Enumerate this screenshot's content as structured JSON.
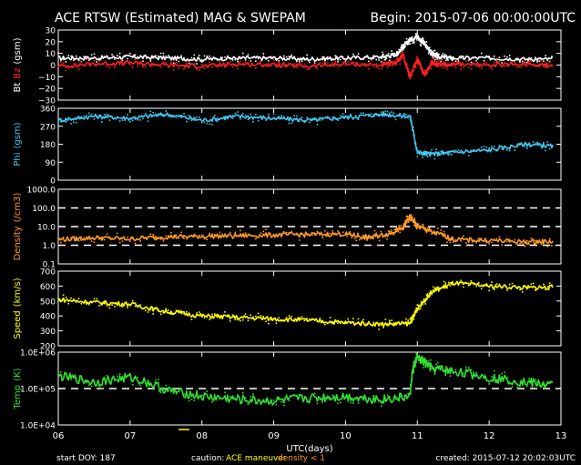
{
  "header": {
    "title": "ACE RTSW (Estimated) MAG & SWEPAM",
    "begin": "Begin: 2015-07-06 00:00:00UTC"
  },
  "footer": {
    "start_doy": "start DOY: 187",
    "caution_label": "caution:",
    "caution_maneuver": "ACE maneuver",
    "caution_density": "density < 1",
    "created": "created: 2015-07-12 20:02:03UTC",
    "xlabel": "UTC(days)"
  },
  "colors": {
    "white": "#ffffff",
    "red": "#ff2020",
    "cyan": "#40c8f0",
    "orange": "#ff9a20",
    "yellow": "#ffff00",
    "green": "#30e030",
    "maneuver": "#ffff00",
    "density_low": "#ff9a20"
  },
  "chart_data": {
    "type": "scatter",
    "x_ticks": [
      "06",
      "07",
      "08",
      "09",
      "10",
      "11",
      "12",
      "13"
    ],
    "x_range": [
      6,
      13
    ],
    "panels": [
      {
        "id": "mag",
        "ylabel_parts": [
          "Bt",
          "Bz",
          "(gsm)"
        ],
        "ylabel_colors": [
          "#ffffff",
          "#ff2020",
          "#ffffff"
        ],
        "y_range": [
          -30,
          30
        ],
        "ticks": [
          "30",
          "20",
          "10",
          "0",
          "−10",
          "−20",
          "−30"
        ],
        "tick_values": [
          30,
          20,
          10,
          0,
          -10,
          -20,
          -30
        ],
        "series": [
          {
            "name": "Bt",
            "color": "#ffffff",
            "x": [
              6.0,
              6.5,
              7.0,
              7.5,
              8.0,
              8.5,
              9.0,
              9.5,
              10.0,
              10.5,
              10.7,
              10.8,
              10.9,
              11.0,
              11.1,
              11.2,
              11.3,
              11.5,
              12.0,
              12.5,
              12.9
            ],
            "y": [
              6,
              6,
              7,
              6,
              5,
              6,
              6,
              5,
              6,
              7,
              9,
              15,
              22,
              24,
              18,
              10,
              7,
              6,
              6,
              5,
              5
            ]
          },
          {
            "name": "Bz",
            "color": "#ff2020",
            "x": [
              6.0,
              6.5,
              7.0,
              7.5,
              8.0,
              8.5,
              9.0,
              9.5,
              10.0,
              10.5,
              10.7,
              10.8,
              10.9,
              11.0,
              11.1,
              11.2,
              11.3,
              11.5,
              12.0,
              12.5,
              12.9
            ],
            "y": [
              -1,
              1,
              2,
              0,
              -1,
              1,
              0,
              -1,
              1,
              0,
              2,
              8,
              -10,
              5,
              -8,
              2,
              0,
              1,
              0,
              1,
              0
            ]
          }
        ]
      },
      {
        "id": "phi",
        "ylabel_parts": [
          "Phi",
          "(gsm)"
        ],
        "ylabel_colors": [
          "#40c8f0",
          "#40c8f0"
        ],
        "y_range": [
          0,
          360
        ],
        "ticks": [
          "360",
          "270",
          "180",
          "90",
          "0"
        ],
        "tick_values": [
          360,
          270,
          180,
          90,
          0
        ],
        "series": [
          {
            "name": "Phi",
            "color": "#40c8f0",
            "x": [
              6.0,
              6.5,
              7.0,
              7.5,
              8.0,
              8.5,
              9.0,
              9.5,
              10.0,
              10.5,
              10.9,
              11.0,
              11.2,
              11.5,
              12.0,
              12.5,
              12.9
            ],
            "y": [
              300,
              320,
              310,
              330,
              300,
              320,
              310,
              300,
              315,
              330,
              320,
              140,
              130,
              140,
              150,
              180,
              170
            ]
          }
        ]
      },
      {
        "id": "density",
        "ylabel_parts": [
          "Density",
          "(/cm3)"
        ],
        "ylabel_colors": [
          "#ff9a20",
          "#ff9a20"
        ],
        "y_log": true,
        "y_range": [
          0.1,
          1000
        ],
        "ticks": [
          "1000.0",
          "100.0",
          "10.0",
          "1.0",
          "0.1"
        ],
        "tick_values": [
          1000,
          100,
          10,
          1,
          0.1
        ],
        "dashed": [
          100,
          10,
          1
        ],
        "series": [
          {
            "name": "Density",
            "color": "#ff9a20",
            "x": [
              6.0,
              6.5,
              7.0,
              7.5,
              8.0,
              8.5,
              9.0,
              9.5,
              10.0,
              10.3,
              10.6,
              10.8,
              10.9,
              11.0,
              11.2,
              11.5,
              12.0,
              12.5,
              12.9
            ],
            "y": [
              2,
              2.5,
              2.2,
              2.8,
              3,
              3.2,
              3.5,
              3.8,
              4,
              2.5,
              4,
              8,
              30,
              10,
              5,
              2,
              1.8,
              1.5,
              1.6
            ]
          }
        ]
      },
      {
        "id": "speed",
        "ylabel_parts": [
          "Speed",
          "(km/s)"
        ],
        "ylabel_colors": [
          "#ffff00",
          "#ffff00"
        ],
        "y_range": [
          200,
          700
        ],
        "ticks": [
          "700",
          "600",
          "500",
          "400",
          "300",
          "200"
        ],
        "tick_values": [
          700,
          600,
          500,
          400,
          300,
          200
        ],
        "series": [
          {
            "name": "Speed",
            "color": "#ffff00",
            "x": [
              6.0,
              6.5,
              7.0,
              7.5,
              8.0,
              8.5,
              9.0,
              9.5,
              10.0,
              10.5,
              10.9,
              11.0,
              11.2,
              11.5,
              12.0,
              12.5,
              12.9
            ],
            "y": [
              510,
              490,
              480,
              430,
              400,
              390,
              380,
              370,
              355,
              345,
              350,
              450,
              560,
              620,
              600,
              590,
              590
            ]
          }
        ]
      },
      {
        "id": "temp",
        "ylabel_parts": [
          "Temp",
          "(K)"
        ],
        "ylabel_colors": [
          "#30e030",
          "#30e030"
        ],
        "y_log": true,
        "y_range": [
          10000,
          1000000
        ],
        "ticks": [
          "1.0E+06",
          "1.0E+05",
          "1.0E+04"
        ],
        "tick_values": [
          1000000,
          100000,
          10000
        ],
        "dashed": [
          100000
        ],
        "series": [
          {
            "name": "Temp",
            "color": "#30e030",
            "x": [
              6.0,
              6.5,
              7.0,
              7.5,
              8.0,
              8.5,
              9.0,
              9.5,
              10.0,
              10.5,
              10.9,
              11.0,
              11.2,
              11.5,
              12.0,
              12.5,
              12.9
            ],
            "y": [
              220000,
              150000,
              200000,
              90000,
              60000,
              50000,
              45000,
              55000,
              60000,
              50000,
              60000,
              700000,
              350000,
              300000,
              200000,
              150000,
              120000
            ]
          }
        ]
      }
    ]
  }
}
